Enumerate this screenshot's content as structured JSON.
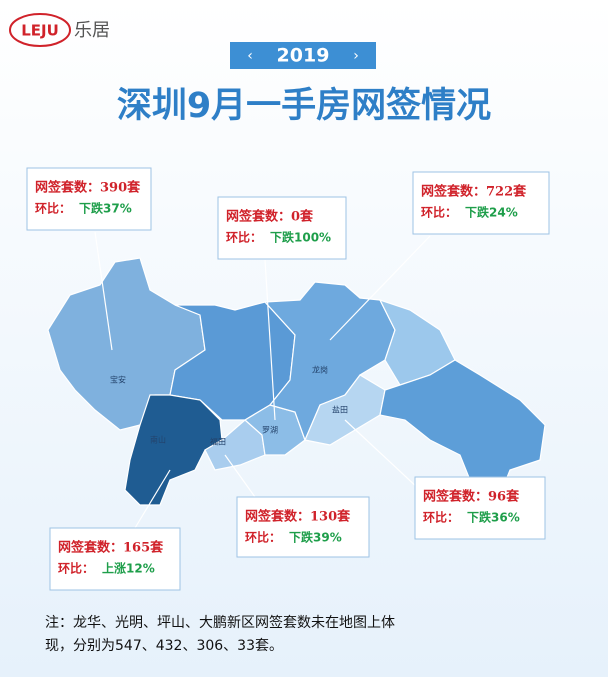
{
  "header": {
    "logo": "LEJU",
    "logo_cn": "乐居",
    "year": "2019",
    "title": "深圳9月一手房网签情况"
  },
  "map_labels": [
    "宝安",
    "南山",
    "福田",
    "罗湖",
    "龙岗",
    "盐田"
  ],
  "callouts": [
    {
      "sales": "网签套数：390套",
      "ratio_label": "环比：",
      "ratio": "下跌37%"
    },
    {
      "sales": "网签套数：0套",
      "ratio_label": "环比：",
      "ratio": "下跌100%"
    },
    {
      "sales": "网签套数：722套",
      "ratio_label": "环比：",
      "ratio": "下跌24%"
    },
    {
      "sales": "网签套数：130套",
      "ratio_label": "环比：",
      "ratio": "下跌39%"
    },
    {
      "sales": "网签套数：165套",
      "ratio_label": "环比：",
      "ratio": "上涨12%"
    },
    {
      "sales": "网签套数：96套",
      "ratio_label": "环比：",
      "ratio": "下跌36%"
    }
  ],
  "note": [
    "注：龙华、光明、坪山、大鹏新区网签套数未在地图上体",
    "现，分别为547、432、306、33套。"
  ]
}
